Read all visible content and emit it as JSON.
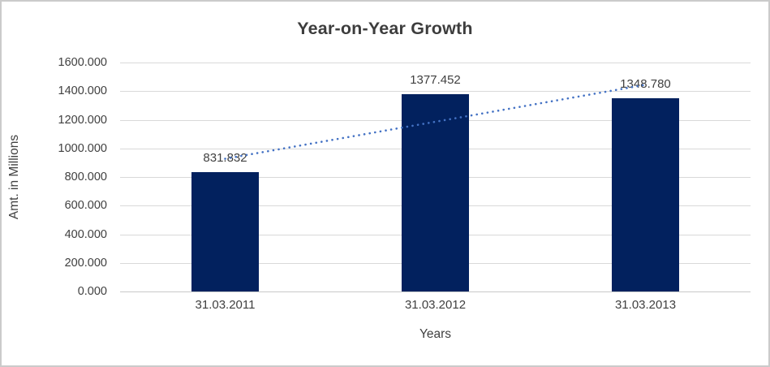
{
  "chart_data": {
    "type": "bar",
    "title": "Year-on-Year Growth",
    "categories": [
      "31.03.2011",
      "31.03.2012",
      "31.03.2013"
    ],
    "values": [
      831.832,
      1377.452,
      1348.78
    ],
    "data_labels": [
      "831.832",
      "1377.452",
      "1348.780"
    ],
    "xlabel": "Years",
    "ylabel": "Amt. in Millions",
    "ylim": [
      0,
      1600
    ],
    "ytick_labels_bottom_to_top": [
      "0.000",
      "200.000",
      "400.000",
      "600.000",
      "800.000",
      "1000.000",
      "1200.000",
      "1400.000",
      "1600.000"
    ],
    "grid": true,
    "legend": false,
    "colors": {
      "bar": "#02215e",
      "trendline": "#4472c4",
      "gridline": "#d9d9d9",
      "text": "#404040",
      "title": "#3d3d3d",
      "frame_border": "#cbcbcb"
    },
    "trendline": {
      "type": "linear",
      "style": "dotted"
    }
  }
}
